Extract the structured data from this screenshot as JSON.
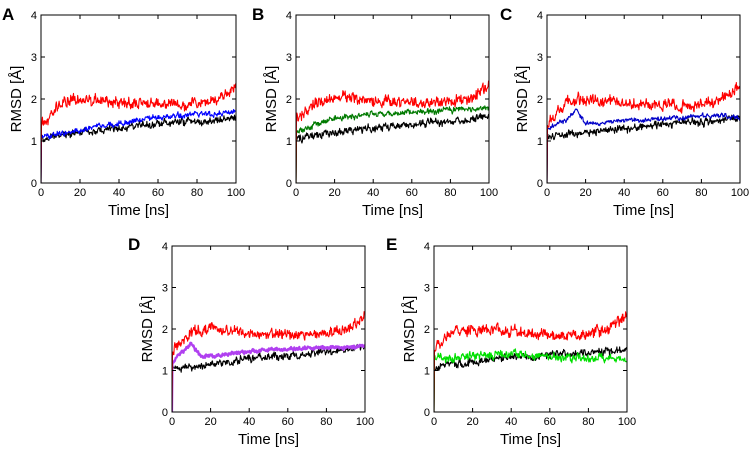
{
  "figure_title": "",
  "chart_data": [
    {
      "id": "A",
      "type": "line",
      "title": "",
      "xlabel": "Time [ns]",
      "ylabel": "RMSD [Å]",
      "xlim": [
        0,
        100
      ],
      "ylim": [
        0,
        4
      ],
      "xticks": [
        "0",
        "20",
        "40",
        "60",
        "80",
        "100"
      ],
      "yticks": [
        "0",
        "1",
        "2",
        "3",
        "4"
      ],
      "grid": false,
      "series": [
        {
          "name": "black",
          "color": "#000000",
          "x": [
            0,
            10,
            20,
            30,
            40,
            50,
            60,
            70,
            80,
            90,
            100
          ],
          "y": [
            1.05,
            1.15,
            1.2,
            1.25,
            1.3,
            1.35,
            1.4,
            1.45,
            1.45,
            1.5,
            1.55
          ],
          "noise": 0.12
        },
        {
          "name": "blue",
          "color": "#0000ff",
          "x": [
            0,
            10,
            20,
            30,
            40,
            50,
            60,
            70,
            80,
            90,
            100
          ],
          "y": [
            1.1,
            1.2,
            1.25,
            1.35,
            1.4,
            1.5,
            1.55,
            1.6,
            1.65,
            1.65,
            1.7
          ],
          "noise": 0.09
        },
        {
          "name": "red",
          "color": "#ff0000",
          "x": [
            0,
            10,
            20,
            30,
            40,
            50,
            60,
            70,
            80,
            90,
            100
          ],
          "y": [
            1.4,
            1.9,
            2.0,
            1.95,
            1.95,
            1.9,
            1.9,
            1.85,
            1.9,
            2.0,
            2.3
          ],
          "noise": 0.18
        }
      ]
    },
    {
      "id": "B",
      "type": "line",
      "title": "",
      "xlabel": "Time [ns]",
      "ylabel": "RMSD [Å]",
      "xlim": [
        0,
        100
      ],
      "ylim": [
        0,
        4
      ],
      "xticks": [
        "0",
        "20",
        "40",
        "60",
        "80",
        "100"
      ],
      "yticks": [
        "0",
        "1",
        "2",
        "3",
        "4"
      ],
      "grid": false,
      "series": [
        {
          "name": "black",
          "color": "#000000",
          "x": [
            0,
            10,
            20,
            30,
            40,
            50,
            60,
            70,
            80,
            90,
            100
          ],
          "y": [
            1.05,
            1.15,
            1.2,
            1.25,
            1.3,
            1.35,
            1.4,
            1.45,
            1.45,
            1.5,
            1.6
          ],
          "noise": 0.12
        },
        {
          "name": "green",
          "color": "#007a00",
          "x": [
            0,
            10,
            20,
            30,
            40,
            50,
            60,
            70,
            80,
            90,
            100
          ],
          "y": [
            1.2,
            1.4,
            1.55,
            1.6,
            1.65,
            1.65,
            1.7,
            1.7,
            1.75,
            1.75,
            1.8
          ],
          "noise": 0.1
        },
        {
          "name": "red",
          "color": "#ff0000",
          "x": [
            0,
            10,
            20,
            30,
            40,
            50,
            60,
            70,
            80,
            90,
            100
          ],
          "y": [
            1.5,
            1.9,
            2.05,
            2.0,
            1.95,
            1.95,
            1.9,
            1.9,
            1.95,
            2.0,
            2.3
          ],
          "noise": 0.18
        }
      ]
    },
    {
      "id": "C",
      "type": "line",
      "title": "",
      "xlabel": "Time [ns]",
      "ylabel": "RMSD [Å]",
      "xlim": [
        0,
        100
      ],
      "ylim": [
        0,
        4
      ],
      "xticks": [
        "0",
        "20",
        "40",
        "60",
        "80",
        "100"
      ],
      "yticks": [
        "0",
        "1",
        "2",
        "3",
        "4"
      ],
      "grid": false,
      "series": [
        {
          "name": "black",
          "color": "#000000",
          "x": [
            0,
            10,
            20,
            30,
            40,
            50,
            60,
            70,
            80,
            90,
            100
          ],
          "y": [
            1.1,
            1.15,
            1.2,
            1.25,
            1.3,
            1.35,
            1.4,
            1.45,
            1.45,
            1.5,
            1.55
          ],
          "noise": 0.12
        },
        {
          "name": "blue",
          "color": "#0000c8",
          "x": [
            0,
            10,
            15,
            20,
            30,
            40,
            50,
            60,
            70,
            80,
            90,
            100
          ],
          "y": [
            1.3,
            1.5,
            1.75,
            1.4,
            1.45,
            1.5,
            1.5,
            1.55,
            1.55,
            1.6,
            1.6,
            1.55
          ],
          "noise": 0.07
        },
        {
          "name": "red",
          "color": "#ff0000",
          "x": [
            0,
            10,
            20,
            30,
            40,
            50,
            60,
            70,
            80,
            90,
            100
          ],
          "y": [
            1.4,
            1.95,
            2.0,
            1.95,
            1.9,
            1.9,
            1.85,
            1.85,
            1.9,
            2.0,
            2.3
          ],
          "noise": 0.18
        }
      ]
    },
    {
      "id": "D",
      "type": "line",
      "title": "",
      "xlabel": "Time [ns]",
      "ylabel": "RMSD [Å]",
      "xlim": [
        0,
        100
      ],
      "ylim": [
        0,
        4
      ],
      "xticks": [
        "0",
        "20",
        "40",
        "60",
        "80",
        "100"
      ],
      "yticks": [
        "0",
        "1",
        "2",
        "3",
        "4"
      ],
      "grid": false,
      "series": [
        {
          "name": "black",
          "color": "#000000",
          "x": [
            0,
            10,
            20,
            30,
            40,
            50,
            60,
            70,
            80,
            90,
            100
          ],
          "y": [
            1.05,
            1.05,
            1.15,
            1.2,
            1.3,
            1.35,
            1.35,
            1.4,
            1.45,
            1.5,
            1.6
          ],
          "noise": 0.12
        },
        {
          "name": "purple",
          "color": "#b040f0",
          "x": [
            0,
            5,
            10,
            15,
            20,
            30,
            40,
            50,
            60,
            70,
            80,
            90,
            100
          ],
          "y": [
            1.2,
            1.45,
            1.65,
            1.35,
            1.35,
            1.4,
            1.45,
            1.5,
            1.5,
            1.55,
            1.55,
            1.55,
            1.6
          ],
          "noise": 0.06
        },
        {
          "name": "red",
          "color": "#ff0000",
          "x": [
            0,
            10,
            20,
            30,
            40,
            50,
            60,
            70,
            80,
            90,
            100
          ],
          "y": [
            1.5,
            1.95,
            2.0,
            1.95,
            1.9,
            1.9,
            1.85,
            1.85,
            1.9,
            2.0,
            2.3
          ],
          "noise": 0.18
        }
      ]
    },
    {
      "id": "E",
      "type": "line",
      "title": "",
      "xlabel": "Time [ns]",
      "ylabel": "RMSD [Å]",
      "xlim": [
        0,
        100
      ],
      "ylim": [
        0,
        4
      ],
      "xticks": [
        "0",
        "20",
        "40",
        "60",
        "80",
        "100"
      ],
      "yticks": [
        "0",
        "1",
        "2",
        "3",
        "4"
      ],
      "grid": false,
      "series": [
        {
          "name": "black",
          "color": "#000000",
          "x": [
            0,
            10,
            20,
            30,
            40,
            50,
            60,
            70,
            80,
            90,
            100
          ],
          "y": [
            1.1,
            1.15,
            1.2,
            1.25,
            1.3,
            1.35,
            1.4,
            1.4,
            1.45,
            1.45,
            1.5
          ],
          "noise": 0.13
        },
        {
          "name": "green",
          "color": "#00e000",
          "x": [
            0,
            10,
            20,
            30,
            40,
            50,
            60,
            70,
            80,
            90,
            100
          ],
          "y": [
            1.3,
            1.3,
            1.35,
            1.35,
            1.4,
            1.35,
            1.35,
            1.3,
            1.3,
            1.3,
            1.25
          ],
          "noise": 0.14
        },
        {
          "name": "red",
          "color": "#ff0000",
          "x": [
            0,
            10,
            20,
            30,
            40,
            50,
            60,
            70,
            80,
            90,
            100
          ],
          "y": [
            1.5,
            1.95,
            2.0,
            1.95,
            1.95,
            1.9,
            1.85,
            1.85,
            1.9,
            2.0,
            2.3
          ],
          "noise": 0.18
        }
      ]
    }
  ]
}
